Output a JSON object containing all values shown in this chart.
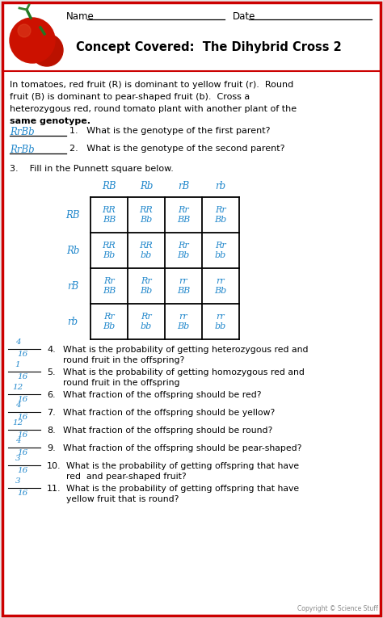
{
  "title": "Concept Covered:  The Dihybrid Cross 2",
  "problem_text_lines": [
    "In tomatoes, red fruit (R) is dominant to yellow fruit (r).  Round",
    "fruit (B) is dominant to pear-shaped fruit (b).  Cross a",
    "heterozygous red, round tomato plant with another plant of the",
    "same genotype."
  ],
  "q1_answer_num": "RrBb",
  "q2_answer_num": "RrBb",
  "q1_text": "1.   What is the genotype of the first parent?",
  "q2_text": "2.   What is the genotype of the second parent?",
  "q3_text": "3.    Fill in the Punnett square below.",
  "col_headers": [
    "RB",
    "Rb",
    "rB",
    "rb"
  ],
  "row_headers": [
    "RB",
    "Rb",
    "rB",
    "rb"
  ],
  "punnett_cells": [
    [
      "RR\nBB",
      "RR\nBb",
      "Rr\nBB",
      "Rr\nBb"
    ],
    [
      "RR\nBb",
      "RR\nbb",
      "Rr\nBb",
      "Rr\nbb"
    ],
    [
      "Rr\nBB",
      "Rr\nBb",
      "rr\nBB",
      "rr\nBb"
    ],
    [
      "Rr\nBb",
      "Rr\nbb",
      "rr\nBb",
      "rr\nbb"
    ]
  ],
  "questions": [
    {
      "num": "4.",
      "ans_top": "4",
      "ans_bot": "16",
      "text": "What is the probability of getting heterozygous red and",
      "text2": "round fruit in the offspring?"
    },
    {
      "num": "5.",
      "ans_top": "1",
      "ans_bot": "16",
      "text": "What is the probability of getting homozygous red and",
      "text2": "round fruit in the offspring"
    },
    {
      "num": "6.",
      "ans_top": "12",
      "ans_bot": "16",
      "text": "What fraction of the offspring should be red?",
      "text2": ""
    },
    {
      "num": "7.",
      "ans_top": "4",
      "ans_bot": "16",
      "text": "What fraction of the offspring should be yellow?",
      "text2": ""
    },
    {
      "num": "8.",
      "ans_top": "12",
      "ans_bot": "16",
      "text": "What fraction of the offspring should be round?",
      "text2": ""
    },
    {
      "num": "9.",
      "ans_top": "4",
      "ans_bot": "16",
      "text": "What fraction of the offspring should be pear-shaped?",
      "text2": ""
    },
    {
      "num": "10.",
      "ans_top": "3",
      "ans_bot": "16",
      "text": "What is the probability of getting offspring that have",
      "text2": "red  and pear-shaped fruit?"
    },
    {
      "num": "11.",
      "ans_top": "3",
      "ans_bot": "16",
      "text": "What is the probability of getting offspring that have",
      "text2": "yellow fruit that is round?"
    }
  ],
  "bg_color": "#e8e8e8",
  "border_color": "#cc0000",
  "answer_color": "#2288cc",
  "punnett_color": "#2288cc",
  "copyright": "Copyright © Science Stuff"
}
